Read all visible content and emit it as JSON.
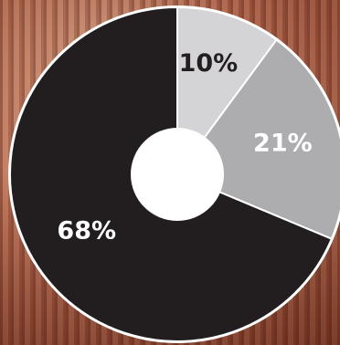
{
  "chart_data": {
    "type": "donut",
    "title": "",
    "categories": [
      "",
      "",
      ""
    ],
    "values": [
      10,
      21,
      68
    ],
    "labels": [
      "10%",
      "21%",
      "68%"
    ],
    "colors": [
      "#d4d4d6",
      "#adadb0",
      "#221e1f"
    ],
    "label_colors": [
      "#231f20",
      "#ffffff",
      "#ffffff"
    ],
    "start_angle_deg": 0,
    "direction": "clockwise",
    "border_color": "#ffffff",
    "center_hole_color": "#ffffff",
    "legend": "none"
  }
}
